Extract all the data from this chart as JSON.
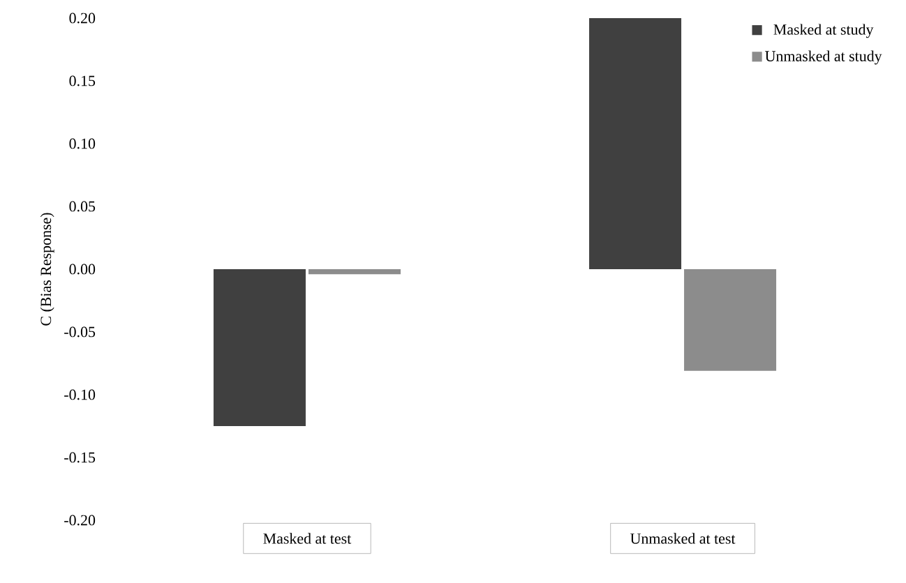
{
  "chart_data": {
    "type": "bar",
    "ylabel": "C (Bias Response)",
    "categories": [
      "Masked at test",
      "Unmasked at test"
    ],
    "series": [
      {
        "name": "Masked at study",
        "color": "#404040",
        "values": [
          -0.125,
          0.2
        ]
      },
      {
        "name": "Unmasked at study",
        "color": "#8c8c8c",
        "values": [
          -0.004,
          -0.081
        ]
      }
    ],
    "ylim": [
      -0.2,
      0.2
    ],
    "yticks": [
      {
        "value": -0.2,
        "label": "-0.20"
      },
      {
        "value": -0.15,
        "label": "-0.15"
      },
      {
        "value": -0.1,
        "label": "-0.10"
      },
      {
        "value": -0.05,
        "label": "-0.05"
      },
      {
        "value": 0,
        "label": "0.00"
      },
      {
        "value": 0.05,
        "label": "0.05"
      },
      {
        "value": 0.1,
        "label": "0.10"
      },
      {
        "value": 0.15,
        "label": "0.15"
      },
      {
        "value": 0.2,
        "label": "0.20"
      }
    ],
    "grid": false,
    "legend": "top right"
  }
}
